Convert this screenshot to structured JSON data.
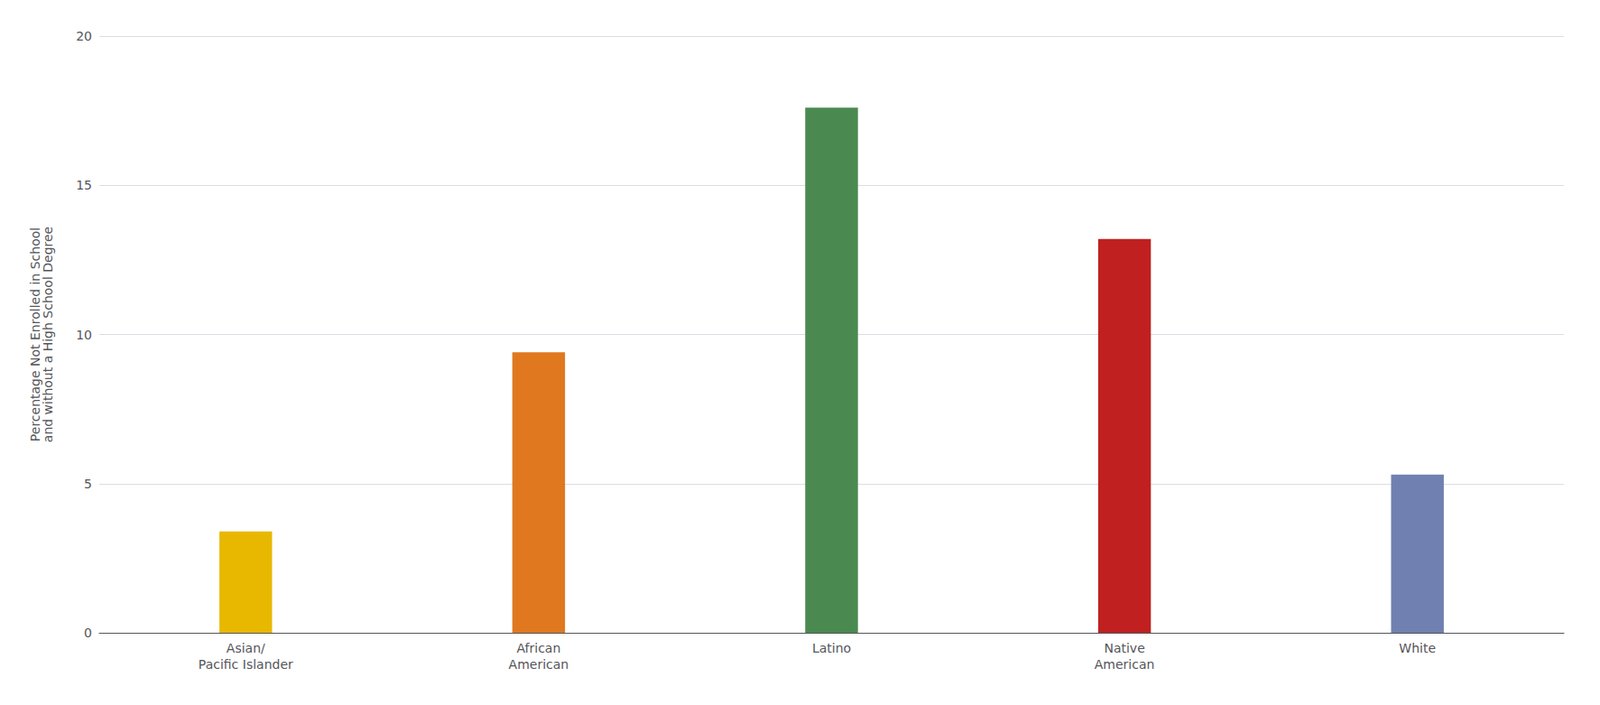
{
  "chart_data": {
    "type": "bar",
    "categories": [
      "Asian/\nPacific Islander",
      "African\nAmerican",
      "Latino",
      "Native\nAmerican",
      "White"
    ],
    "values": [
      3.4,
      9.4,
      17.6,
      13.2,
      5.3
    ],
    "colors": [
      "#E8B800",
      "#E07820",
      "#4A8A50",
      "#C02020",
      "#7080B0"
    ],
    "ylabel": "Percentage Not Enrolled in School\nand without a High School Degree",
    "ylim": [
      0,
      20
    ],
    "yticks": [
      0,
      5,
      10,
      15,
      20
    ],
    "grid": true
  }
}
